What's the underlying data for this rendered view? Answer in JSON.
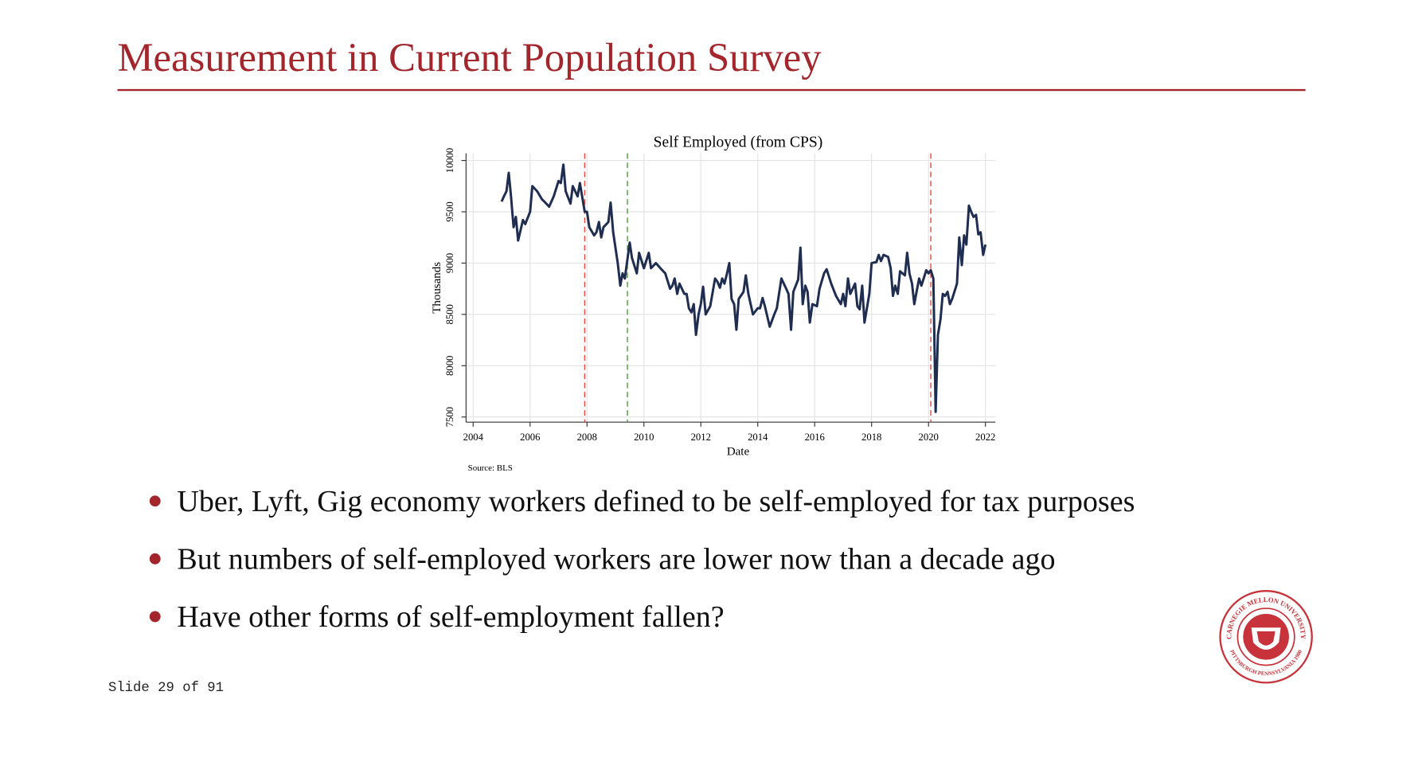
{
  "slide": {
    "title": "Measurement in Current Population Survey",
    "bullets": [
      "Uber, Lyft, Gig economy workers defined to be self-employed for tax purposes",
      "But numbers of self-employed workers are lower now than a decade ago",
      "Have other forms of self-employment fallen?"
    ],
    "footer": "Slide 29 of 91",
    "logo_top": "CARNEGIE MELLON UNIVERSITY",
    "logo_bottom": "PITTSBURGH PENNSYLVANIA 1900"
  },
  "chart_data": {
    "type": "line",
    "title": "Self Employed (from CPS)",
    "ylabel": "Thousands",
    "xlabel": "Date",
    "note": "Source: BLS",
    "color": "#1f2d50",
    "grid": true,
    "xlim": [
      2003.75,
      2022.35
    ],
    "ylim": [
      7450,
      10070
    ],
    "xticks": [
      2004,
      2006,
      2008,
      2010,
      2012,
      2014,
      2016,
      2018,
      2020,
      2022
    ],
    "yticks": [
      7500,
      8000,
      8500,
      9000,
      9500,
      10000
    ],
    "vlines": [
      {
        "x": 2007.92,
        "color": "#e8453c"
      },
      {
        "x": 2009.42,
        "color": "#4c9a3a"
      },
      {
        "x": 2020.08,
        "color": "#e8453c"
      }
    ],
    "x": [
      2005.0,
      2005.08,
      2005.17,
      2005.25,
      2005.33,
      2005.42,
      2005.5,
      2005.58,
      2005.75,
      2005.83,
      2006.0,
      2006.08,
      2006.25,
      2006.42,
      2006.5,
      2006.67,
      2006.83,
      2007.0,
      2007.08,
      2007.17,
      2007.25,
      2007.42,
      2007.5,
      2007.67,
      2007.75,
      2007.92,
      2008.0,
      2008.08,
      2008.25,
      2008.33,
      2008.42,
      2008.5,
      2008.58,
      2008.75,
      2008.83,
      2008.92,
      2009.08,
      2009.17,
      2009.25,
      2009.33,
      2009.5,
      2009.58,
      2009.75,
      2009.83,
      2010.0,
      2010.17,
      2010.25,
      2010.42,
      2010.58,
      2010.75,
      2010.92,
      2011.0,
      2011.08,
      2011.17,
      2011.25,
      2011.42,
      2011.5,
      2011.58,
      2011.67,
      2011.75,
      2011.83,
      2011.92,
      2012.0,
      2012.08,
      2012.17,
      2012.33,
      2012.5,
      2012.58,
      2012.67,
      2012.75,
      2012.83,
      2012.92,
      2013.0,
      2013.08,
      2013.17,
      2013.25,
      2013.33,
      2013.5,
      2013.58,
      2013.67,
      2013.83,
      2014.0,
      2014.08,
      2014.17,
      2014.25,
      2014.42,
      2014.58,
      2014.67,
      2014.83,
      2015.0,
      2015.08,
      2015.17,
      2015.25,
      2015.42,
      2015.5,
      2015.58,
      2015.67,
      2015.75,
      2015.83,
      2015.92,
      2016.08,
      2016.17,
      2016.33,
      2016.42,
      2016.58,
      2016.75,
      2016.92,
      2017.0,
      2017.08,
      2017.17,
      2017.25,
      2017.42,
      2017.5,
      2017.58,
      2017.67,
      2017.75,
      2017.92,
      2018.0,
      2018.17,
      2018.25,
      2018.33,
      2018.42,
      2018.58,
      2018.67,
      2018.75,
      2018.83,
      2018.92,
      2019.0,
      2019.17,
      2019.25,
      2019.33,
      2019.42,
      2019.5,
      2019.58,
      2019.67,
      2019.75,
      2019.83,
      2019.92,
      2020.0,
      2020.08,
      2020.17,
      2020.25,
      2020.33,
      2020.42,
      2020.5,
      2020.58,
      2020.67,
      2020.75,
      2020.83,
      2021.0,
      2021.08,
      2021.17,
      2021.25,
      2021.33,
      2021.42,
      2021.5,
      2021.58,
      2021.67,
      2021.75,
      2021.83,
      2021.92,
      2022.0
    ],
    "values": [
      9600,
      9650,
      9700,
      9880,
      9650,
      9350,
      9450,
      9220,
      9420,
      9380,
      9500,
      9750,
      9700,
      9620,
      9600,
      9550,
      9650,
      9800,
      9780,
      9960,
      9700,
      9580,
      9750,
      9650,
      9780,
      9500,
      9500,
      9350,
      9270,
      9300,
      9400,
      9250,
      9350,
      9400,
      9590,
      9300,
      9000,
      8780,
      8900,
      8850,
      9200,
      9050,
      8900,
      9100,
      8950,
      9100,
      8950,
      9000,
      8950,
      8900,
      8750,
      8780,
      8850,
      8700,
      8800,
      8700,
      8700,
      8560,
      8520,
      8600,
      8300,
      8500,
      8600,
      8770,
      8500,
      8580,
      8850,
      8820,
      8760,
      8850,
      8800,
      8900,
      9000,
      8650,
      8600,
      8350,
      8650,
      8720,
      8880,
      8700,
      8500,
      8560,
      8560,
      8660,
      8580,
      8380,
      8500,
      8560,
      8850,
      8750,
      8700,
      8350,
      8720,
      8840,
      9150,
      8600,
      8780,
      8720,
      8420,
      8600,
      8580,
      8750,
      8900,
      8940,
      8800,
      8680,
      8600,
      8700,
      8580,
      8850,
      8700,
      8800,
      8580,
      8550,
      8780,
      8420,
      8700,
      9000,
      9010,
      9080,
      9020,
      9080,
      9060,
      8950,
      8680,
      8780,
      8700,
      8920,
      8880,
      9100,
      8900,
      8800,
      8600,
      8720,
      8850,
      8780,
      8850,
      8930,
      8900,
      8930,
      8850,
      7550,
      8300,
      8450,
      8700,
      8680,
      8720,
      8600,
      8650,
      8800,
      9250,
      8980,
      9270,
      9180,
      9560,
      9500,
      9450,
      9470,
      9280,
      9300,
      9080,
      9180
    ]
  }
}
